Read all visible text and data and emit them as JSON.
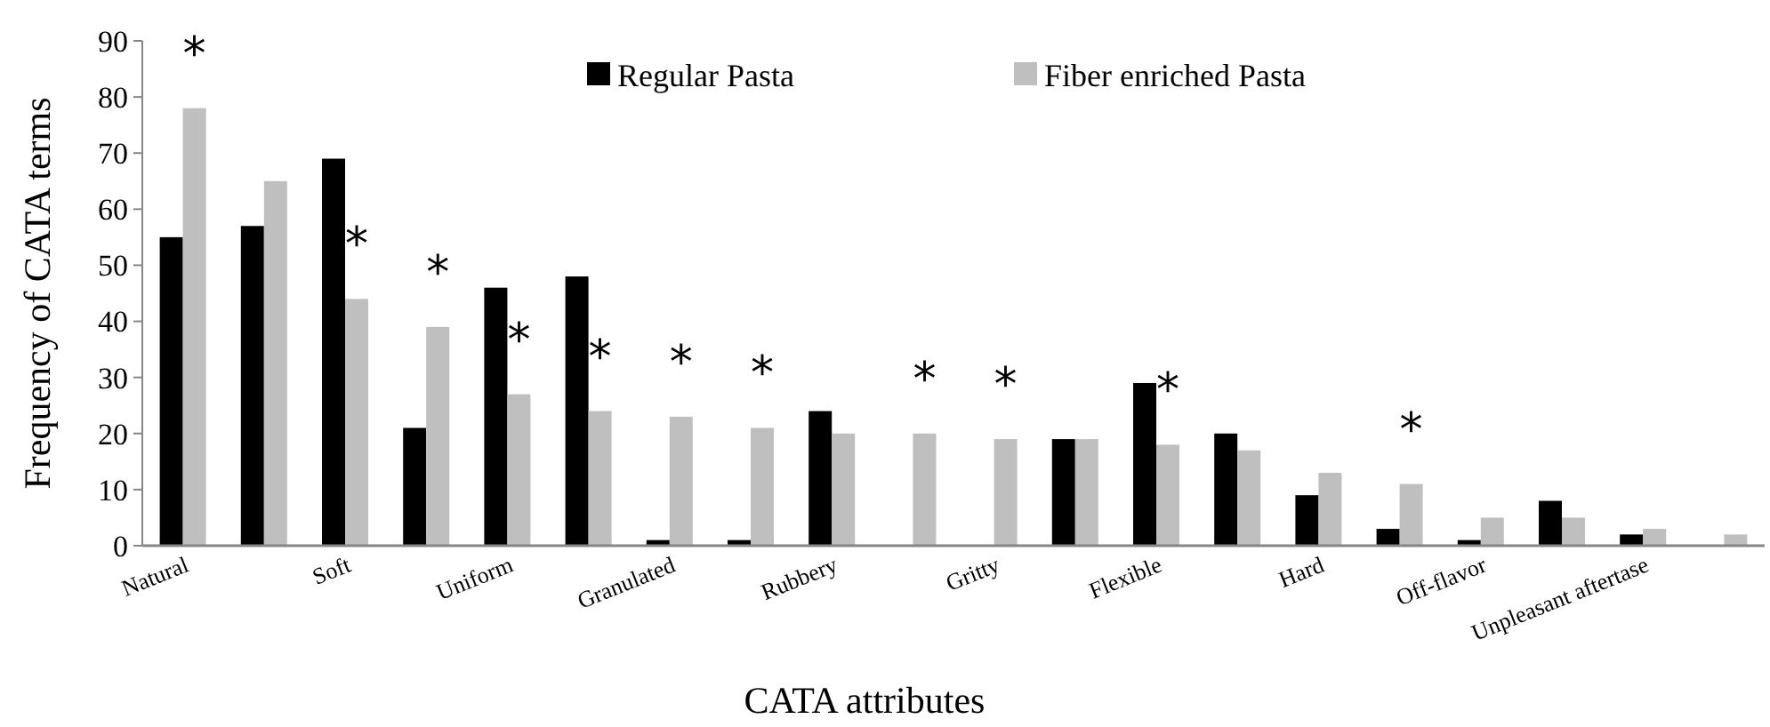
{
  "chart_data": {
    "type": "bar",
    "xlabel": "CATA attributes",
    "ylabel": "Frequency of CATA terms",
    "categories": [
      "Natural",
      null,
      "Soft",
      null,
      "Uniform",
      null,
      "Granulated",
      null,
      "Rubbery",
      null,
      "Gritty",
      null,
      "Flexible",
      null,
      "Hard",
      null,
      "Off-flavor",
      null,
      "Unpleasant aftertase",
      null
    ],
    "series": [
      {
        "name": "Regular Pasta",
        "color": "#000000",
        "values": [
          55,
          57,
          69,
          21,
          46,
          48,
          1,
          1,
          24,
          0,
          0,
          19,
          29,
          20,
          9,
          3,
          1,
          8,
          2,
          0
        ]
      },
      {
        "name": "Fiber enriched Pasta",
        "color": "#bfbfbf",
        "values": [
          78,
          65,
          44,
          39,
          27,
          24,
          23,
          21,
          20,
          20,
          19,
          19,
          18,
          17,
          13,
          11,
          5,
          5,
          3,
          2
        ],
        "value_labels": [
          "*",
          null,
          "*",
          "*",
          "*",
          "*",
          "*",
          "*",
          null,
          "*",
          "*",
          null,
          "*",
          null,
          null,
          "*",
          null,
          null,
          null,
          null
        ]
      }
    ],
    "ylim": [
      0,
      90
    ],
    "yticks": [
      0,
      10,
      20,
      30,
      40,
      50,
      60,
      70,
      80,
      90
    ],
    "grid": false,
    "legend": "top"
  }
}
